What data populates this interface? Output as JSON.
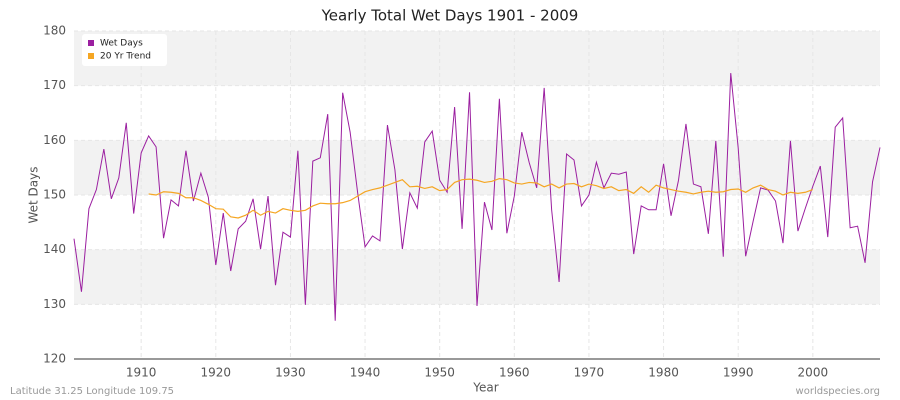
{
  "chart_data": {
    "type": "line",
    "title": "Yearly Total Wet Days 1901 - 2009",
    "xlabel": "Year",
    "ylabel": "Wet Days",
    "footer_left": "Latitude 31.25 Longitude 109.75",
    "footer_right": "worldspecies.org",
    "legend": "upper left",
    "grid": true,
    "xlim": [
      1901,
      2009
    ],
    "xticks": [
      1910,
      1920,
      1930,
      1940,
      1950,
      1960,
      1970,
      1980,
      1990,
      2000
    ],
    "ylim": [
      120,
      180
    ],
    "yticks": [
      120,
      130,
      140,
      150,
      160,
      170,
      180
    ],
    "x": [
      1901,
      1902,
      1903,
      1904,
      1905,
      1906,
      1907,
      1908,
      1909,
      1910,
      1911,
      1912,
      1913,
      1914,
      1915,
      1916,
      1917,
      1918,
      1919,
      1920,
      1921,
      1922,
      1923,
      1924,
      1925,
      1926,
      1927,
      1928,
      1929,
      1930,
      1931,
      1932,
      1933,
      1934,
      1935,
      1936,
      1937,
      1938,
      1939,
      1940,
      1941,
      1942,
      1943,
      1944,
      1945,
      1946,
      1947,
      1948,
      1949,
      1950,
      1951,
      1952,
      1953,
      1954,
      1955,
      1956,
      1957,
      1958,
      1959,
      1960,
      1961,
      1962,
      1963,
      1964,
      1965,
      1966,
      1967,
      1968,
      1969,
      1970,
      1971,
      1972,
      1973,
      1974,
      1975,
      1976,
      1977,
      1978,
      1979,
      1980,
      1981,
      1982,
      1983,
      1984,
      1985,
      1986,
      1987,
      1988,
      1989,
      1990,
      1991,
      1992,
      1993,
      1994,
      1995,
      1996,
      1997,
      1998,
      1999,
      2000,
      2001,
      2002,
      2003,
      2004,
      2005,
      2006,
      2007,
      2008,
      2009
    ],
    "series": [
      {
        "name": "Wet Days",
        "color": "#9b1fa0",
        "values": [
          142,
          132.3,
          147.5,
          151,
          158.4,
          149.3,
          153.1,
          163.2,
          146.6,
          157.7,
          160.8,
          158.8,
          142.1,
          149.1,
          148,
          158.1,
          148.9,
          154,
          149.6,
          137.2,
          146.7,
          136.1,
          143.8,
          145.2,
          149.3,
          140.1,
          149.8,
          133.5,
          143.2,
          142.3,
          158.1,
          129.9,
          156.2,
          156.8,
          164.8,
          127,
          168.7,
          161.5,
          150.5,
          140.5,
          142.5,
          141.6,
          162.8,
          154.6,
          140.1,
          150.4,
          147.6,
          159.7,
          161.7,
          152.7,
          150.5,
          166.1,
          143.8,
          168.8,
          129.7,
          148.7,
          143.6,
          167.6,
          143,
          149.8,
          161.5,
          155.9,
          151.3,
          169.6,
          147.3,
          134.1,
          157.5,
          156.4,
          148,
          150,
          156,
          151.3,
          154,
          153.8,
          154.2,
          139.2,
          148,
          147.3,
          147.3,
          155.7,
          146.2,
          152.7,
          163,
          152,
          151.5,
          142.9,
          159.9,
          138.7,
          172.3,
          158.6,
          138.8,
          145.2,
          151.3,
          150.9,
          148.9,
          141.2,
          159.9,
          143.4,
          147.6,
          151.6,
          155.3,
          142.3,
          162.4,
          164.1,
          144,
          144.3,
          137.6,
          152.4,
          158.7
        ]
      },
      {
        "name": "20 Yr Trend",
        "color": "#f5a623",
        "values": [
          null,
          null,
          null,
          null,
          null,
          null,
          null,
          null,
          null,
          null,
          150.2,
          150,
          150.6,
          150.5,
          150.3,
          149.5,
          149.5,
          149,
          148.3,
          147.5,
          147.4,
          146,
          145.8,
          146.3,
          147.2,
          146.3,
          147,
          146.7,
          147.5,
          147.2,
          147,
          147.2,
          148,
          148.5,
          148.4,
          148.4,
          148.6,
          149,
          149.8,
          150.6,
          151,
          151.3,
          151.8,
          152.3,
          152.8,
          151.5,
          151.6,
          151.2,
          151.5,
          150.8,
          151,
          152.3,
          152.8,
          152.9,
          152.7,
          152.3,
          152.5,
          153,
          152.8,
          152.2,
          152,
          152.3,
          152.2,
          151.5,
          152,
          151.3,
          152,
          152.1,
          151.5,
          152,
          151.7,
          151.2,
          151.5,
          150.8,
          151,
          150.3,
          151.5,
          150.5,
          151.8,
          151.3,
          151,
          150.7,
          150.5,
          150.2,
          150.5,
          150.7,
          150.5,
          150.6,
          151,
          151.1,
          150.5,
          151.3,
          151.8,
          151,
          150.7,
          150,
          150.5,
          150.3,
          150.5,
          151,
          null,
          null,
          null,
          null,
          null,
          null,
          null,
          null,
          null
        ]
      }
    ]
  }
}
